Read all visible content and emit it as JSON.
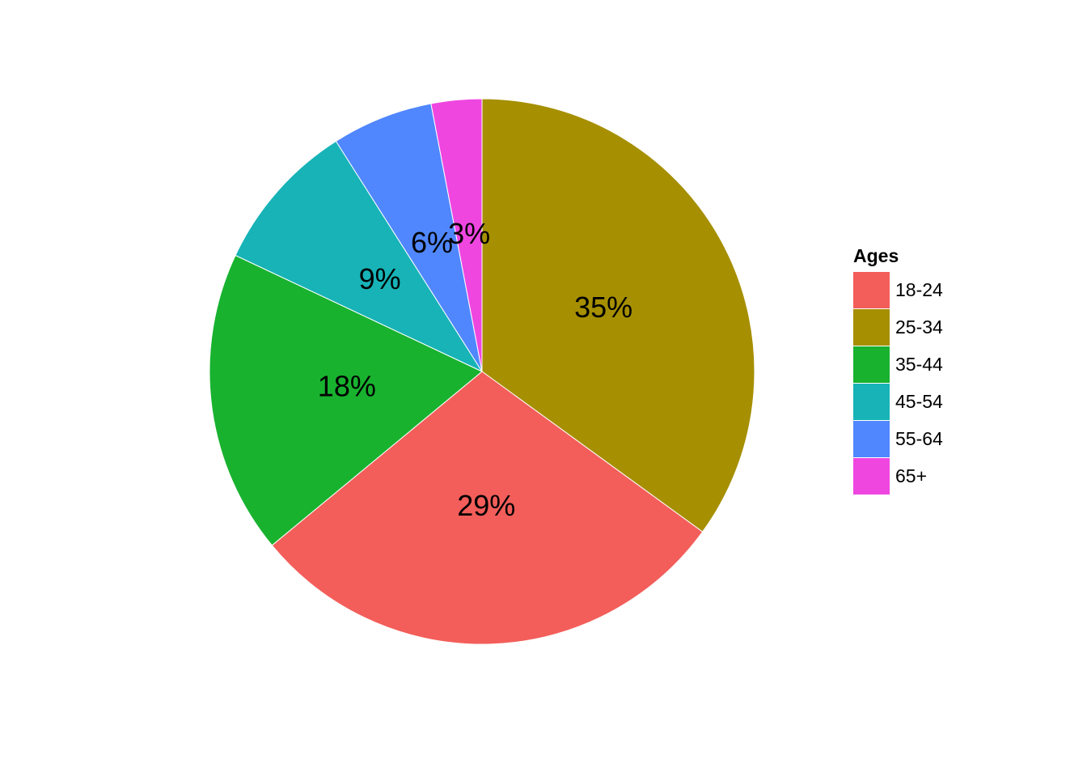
{
  "chart_data": {
    "type": "pie",
    "legend_title": "Ages",
    "categories": [
      "25-34",
      "18-24",
      "35-44",
      "45-54",
      "55-64",
      "65+"
    ],
    "values": [
      35,
      29,
      18,
      9,
      6,
      3
    ],
    "value_labels": [
      "35%",
      "29%",
      "18%",
      "9%",
      "6%",
      "3%"
    ],
    "colors": [
      "#a68f00",
      "#f35e5a",
      "#18b22f",
      "#17b3b7",
      "#5087fe",
      "#ef46e0"
    ],
    "legend": "right"
  }
}
